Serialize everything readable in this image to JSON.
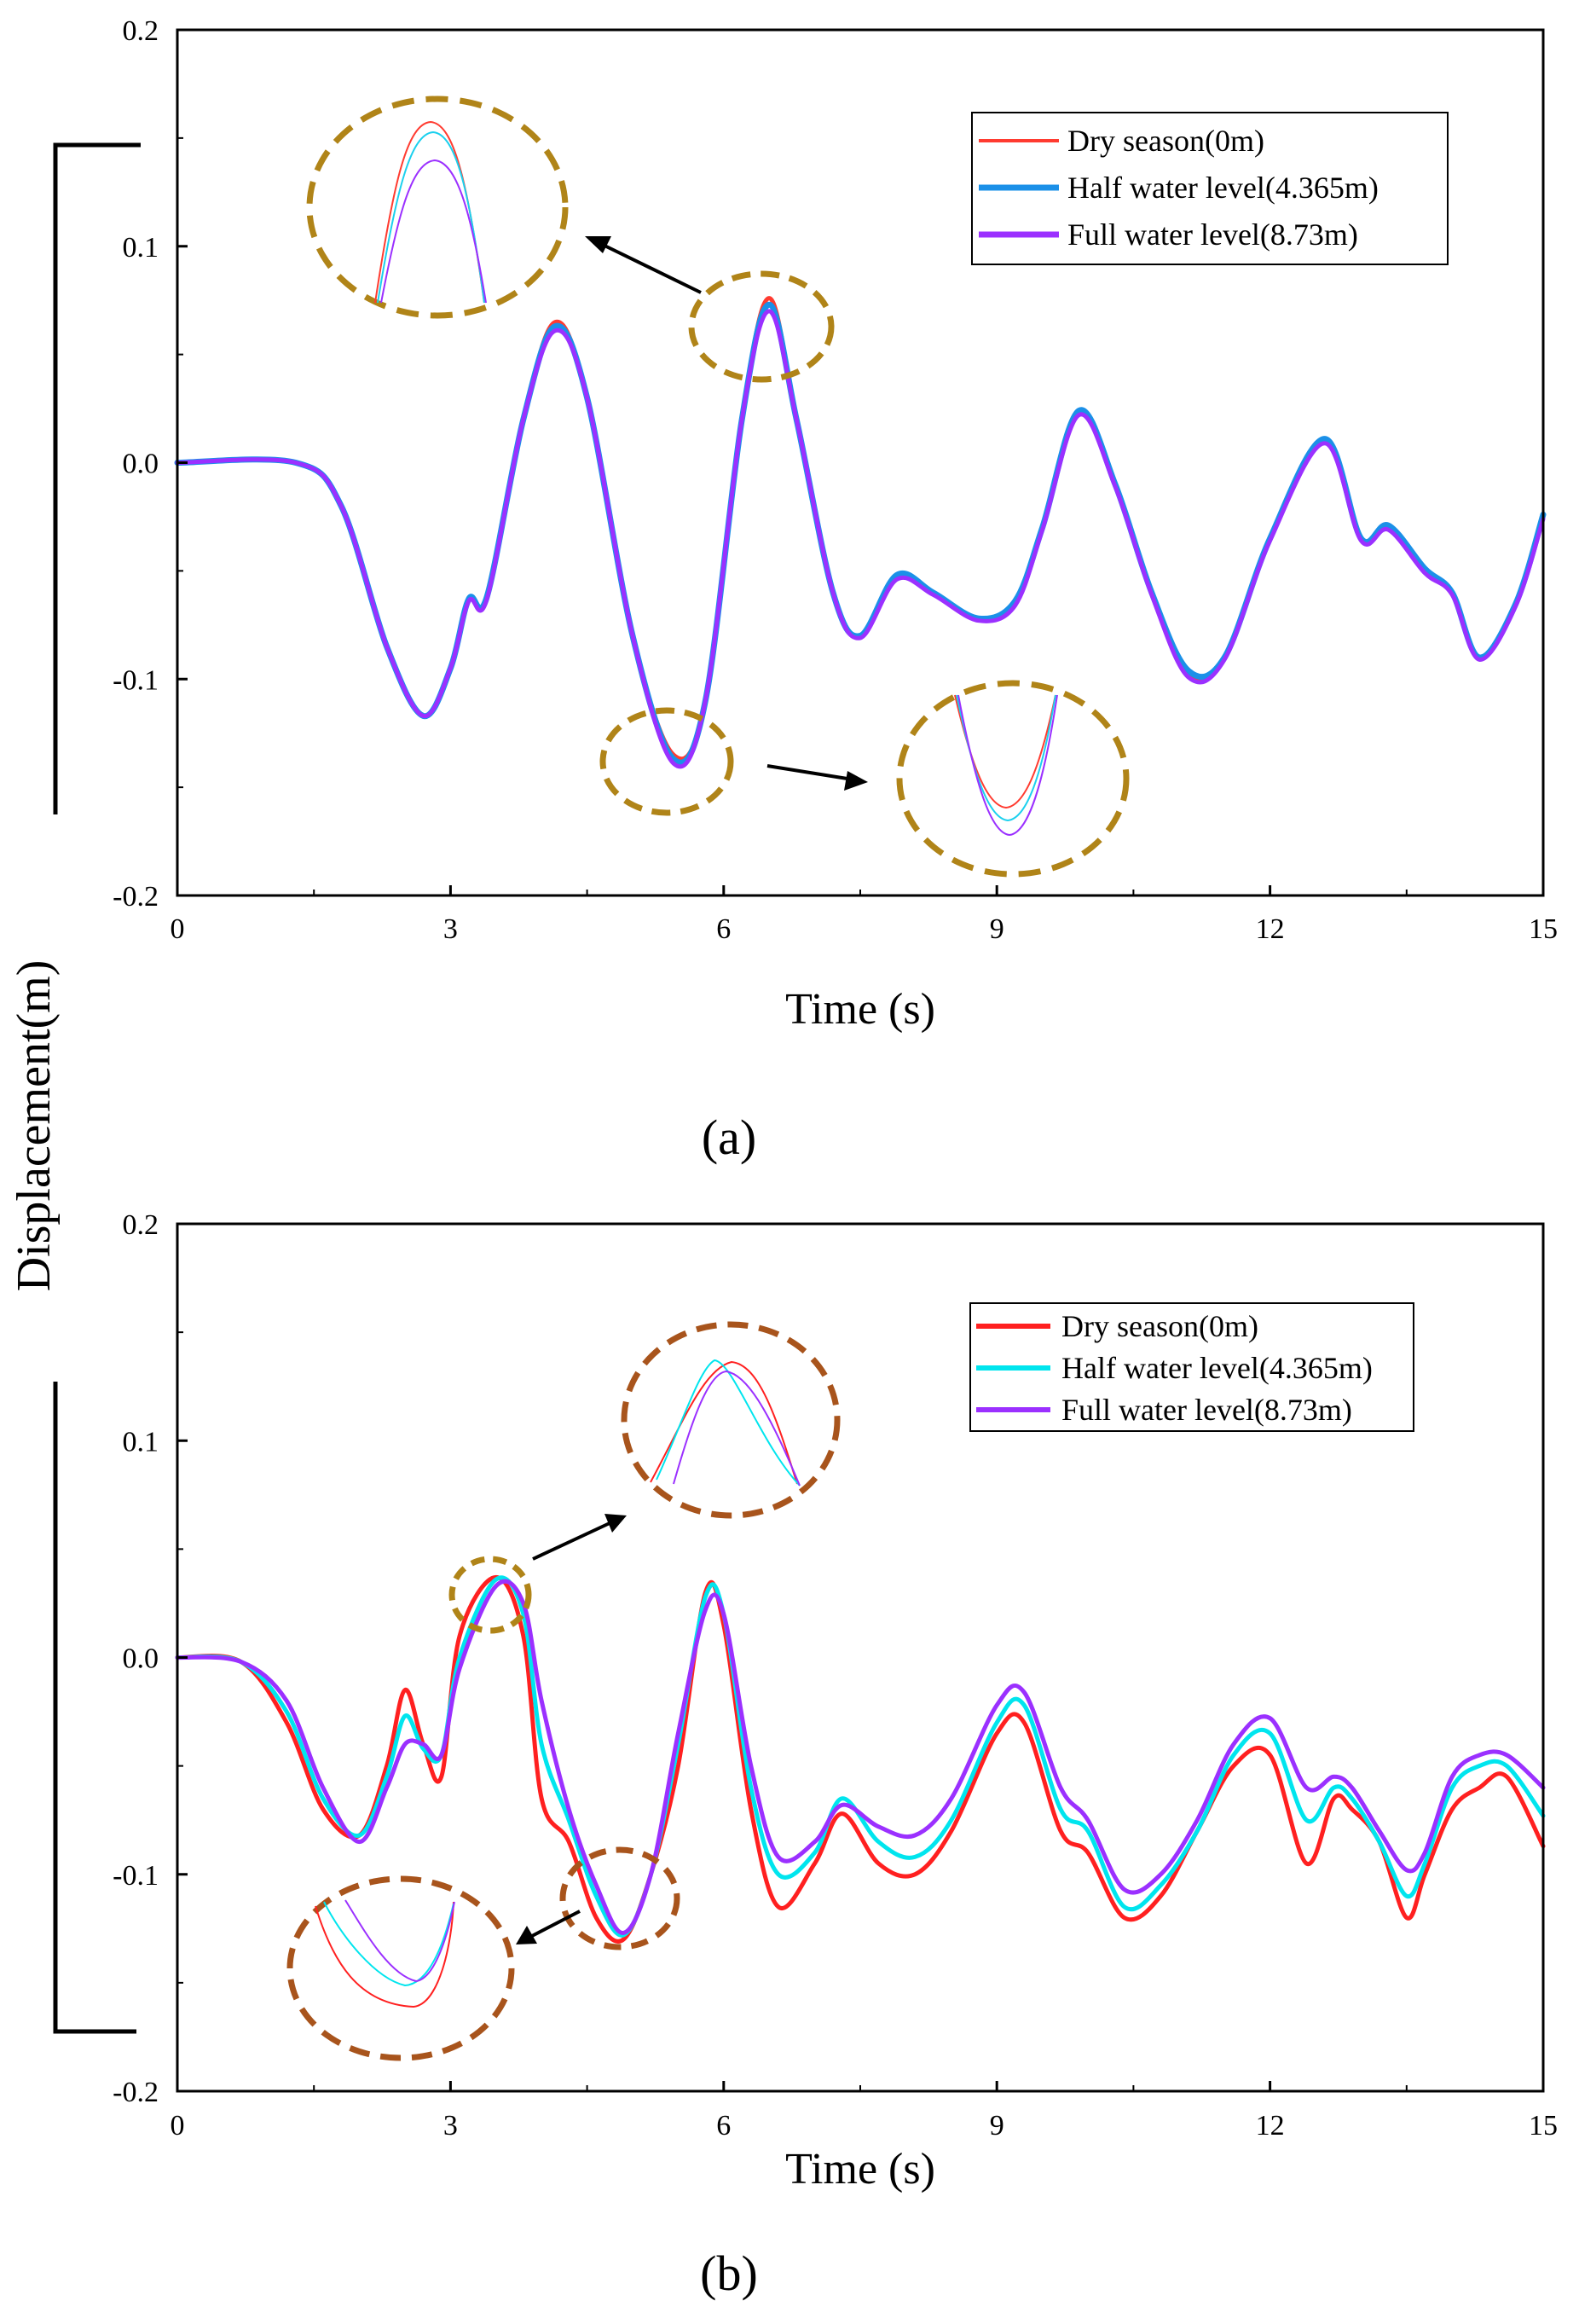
{
  "figure": {
    "ylabel": "Displacement(m)"
  },
  "colors": {
    "a": {
      "dry": "#ff3b30",
      "half": "#1b90e8",
      "full": "#9b30ff"
    },
    "b": {
      "dry": "#ff2020",
      "half": "#00e5ee",
      "full": "#9b30ff"
    },
    "zoom_a": "#b08418",
    "zoom_b": "#a8541c"
  },
  "chart_data": [
    {
      "panel": "(a)",
      "type": "line",
      "xlabel": "Time (s)",
      "ylabel": "Displacement(m)",
      "xlim": [
        0,
        15
      ],
      "ylim": [
        -0.2,
        0.2
      ],
      "xticks": [
        0,
        3,
        6,
        9,
        12,
        15
      ],
      "yticks": [
        -0.2,
        -0.1,
        0.0,
        0.1,
        0.2
      ],
      "ytick_labels": [
        "-0.2",
        "-0.1",
        "0.0",
        "0.1",
        "0.2"
      ],
      "legend_position": "top-right",
      "series": [
        {
          "name": "Dry season(0m)",
          "key": "dry",
          "x": [
            0,
            1.3,
            1.8,
            2.3,
            2.7,
            3.0,
            3.2,
            3.4,
            3.8,
            4.15,
            4.5,
            5.0,
            5.45,
            5.8,
            6.2,
            6.5,
            6.8,
            7.2,
            7.5,
            7.9,
            8.3,
            8.8,
            9.2,
            9.5,
            9.9,
            10.3,
            10.7,
            11.1,
            11.5,
            12.0,
            12.6,
            13.0,
            13.3,
            13.7,
            14.0,
            14.3,
            14.7,
            15.0
          ],
          "y": [
            0,
            0,
            -0.02,
            -0.085,
            -0.117,
            -0.095,
            -0.063,
            -0.062,
            0.02,
            0.065,
            0.03,
            -0.08,
            -0.135,
            -0.11,
            0.02,
            0.076,
            0.02,
            -0.06,
            -0.08,
            -0.053,
            -0.06,
            -0.072,
            -0.065,
            -0.03,
            0.023,
            -0.01,
            -0.06,
            -0.097,
            -0.09,
            -0.035,
            0.01,
            -0.035,
            -0.03,
            -0.05,
            -0.06,
            -0.09,
            -0.065,
            -0.025
          ]
        },
        {
          "name": "Half water level(4.365m)",
          "key": "half",
          "x": [
            0,
            1.3,
            1.8,
            2.3,
            2.7,
            3.0,
            3.2,
            3.4,
            3.8,
            4.15,
            4.5,
            5.0,
            5.45,
            5.8,
            6.2,
            6.5,
            6.8,
            7.2,
            7.5,
            7.9,
            8.3,
            8.8,
            9.2,
            9.5,
            9.9,
            10.3,
            10.7,
            11.1,
            11.5,
            12.0,
            12.6,
            13.0,
            13.3,
            13.7,
            14.0,
            14.3,
            14.7,
            15.0
          ],
          "y": [
            0,
            0,
            -0.02,
            -0.085,
            -0.117,
            -0.095,
            -0.063,
            -0.062,
            0.02,
            0.063,
            0.03,
            -0.08,
            -0.137,
            -0.11,
            0.02,
            0.073,
            0.02,
            -0.06,
            -0.08,
            -0.052,
            -0.06,
            -0.072,
            -0.064,
            -0.03,
            0.024,
            -0.01,
            -0.06,
            -0.096,
            -0.09,
            -0.035,
            0.011,
            -0.035,
            -0.029,
            -0.049,
            -0.06,
            -0.09,
            -0.065,
            -0.024
          ]
        },
        {
          "name": "Full water level(8.73m)",
          "key": "full",
          "x": [
            0,
            1.3,
            1.8,
            2.3,
            2.7,
            3.0,
            3.2,
            3.4,
            3.8,
            4.15,
            4.5,
            5.0,
            5.45,
            5.8,
            6.2,
            6.5,
            6.8,
            7.2,
            7.5,
            7.9,
            8.3,
            8.8,
            9.2,
            9.5,
            9.9,
            10.3,
            10.7,
            11.1,
            11.5,
            12.0,
            12.6,
            13.0,
            13.3,
            13.7,
            14.0,
            14.3,
            14.7,
            15.0
          ],
          "y": [
            0,
            0,
            -0.02,
            -0.085,
            -0.117,
            -0.095,
            -0.064,
            -0.063,
            0.02,
            0.061,
            0.03,
            -0.08,
            -0.139,
            -0.11,
            0.02,
            0.07,
            0.02,
            -0.06,
            -0.081,
            -0.054,
            -0.061,
            -0.073,
            -0.066,
            -0.031,
            0.022,
            -0.011,
            -0.061,
            -0.099,
            -0.091,
            -0.036,
            0.009,
            -0.036,
            -0.031,
            -0.051,
            -0.061,
            -0.091,
            -0.066,
            -0.026
          ]
        }
      ]
    },
    {
      "panel": "(b)",
      "type": "line",
      "xlabel": "Time (s)",
      "ylabel": "Displacement(m)",
      "xlim": [
        0,
        15
      ],
      "ylim": [
        -0.2,
        0.2
      ],
      "xticks": [
        0,
        3,
        6,
        9,
        12,
        15
      ],
      "yticks": [
        -0.2,
        -0.1,
        0.0,
        0.1,
        0.2
      ],
      "ytick_labels": [
        "-0.2",
        "-0.1",
        "0.0",
        "0.1",
        "0.2"
      ],
      "legend_position": "top-right",
      "series": [
        {
          "name": "Dry season(0m)",
          "key": "dry",
          "x": [
            0,
            0.7,
            1.2,
            1.6,
            2.0,
            2.3,
            2.5,
            2.7,
            2.9,
            3.1,
            3.5,
            3.8,
            4.0,
            4.3,
            4.6,
            4.9,
            5.2,
            5.5,
            5.8,
            6.0,
            6.3,
            6.6,
            7.0,
            7.3,
            7.7,
            8.1,
            8.5,
            9.0,
            9.3,
            9.7,
            10.0,
            10.4,
            10.8,
            11.2,
            11.6,
            12.0,
            12.4,
            12.7,
            12.9,
            13.2,
            13.5,
            13.7,
            14.0,
            14.3,
            14.6,
            15.0
          ],
          "y": [
            0,
            -0.002,
            -0.03,
            -0.07,
            -0.082,
            -0.05,
            -0.015,
            -0.04,
            -0.055,
            0.01,
            0.037,
            0.01,
            -0.065,
            -0.085,
            -0.12,
            -0.13,
            -0.1,
            -0.05,
            0.03,
            0.015,
            -0.07,
            -0.115,
            -0.095,
            -0.072,
            -0.095,
            -0.1,
            -0.08,
            -0.035,
            -0.03,
            -0.08,
            -0.09,
            -0.12,
            -0.11,
            -0.08,
            -0.05,
            -0.045,
            -0.095,
            -0.065,
            -0.07,
            -0.085,
            -0.12,
            -0.1,
            -0.07,
            -0.06,
            -0.055,
            -0.087
          ]
        },
        {
          "name": "Half water level(4.365m)",
          "key": "half",
          "x": [
            0,
            0.7,
            1.2,
            1.6,
            2.0,
            2.3,
            2.5,
            2.7,
            2.9,
            3.1,
            3.5,
            3.8,
            4.0,
            4.3,
            4.6,
            4.9,
            5.2,
            5.5,
            5.8,
            6.0,
            6.3,
            6.6,
            7.0,
            7.3,
            7.7,
            8.1,
            8.5,
            9.0,
            9.3,
            9.7,
            10.0,
            10.4,
            10.8,
            11.2,
            11.6,
            12.0,
            12.4,
            12.7,
            12.9,
            13.2,
            13.5,
            13.7,
            14.0,
            14.3,
            14.6,
            15.0
          ],
          "y": [
            0,
            -0.002,
            -0.025,
            -0.065,
            -0.082,
            -0.055,
            -0.027,
            -0.042,
            -0.045,
            0.0,
            0.036,
            0.02,
            -0.04,
            -0.075,
            -0.11,
            -0.128,
            -0.1,
            -0.04,
            0.028,
            0.02,
            -0.06,
            -0.1,
            -0.09,
            -0.065,
            -0.085,
            -0.092,
            -0.075,
            -0.03,
            -0.022,
            -0.07,
            -0.08,
            -0.115,
            -0.105,
            -0.08,
            -0.045,
            -0.035,
            -0.075,
            -0.06,
            -0.065,
            -0.085,
            -0.11,
            -0.095,
            -0.06,
            -0.05,
            -0.05,
            -0.073
          ]
        },
        {
          "name": "Full water level(8.73m)",
          "key": "full",
          "x": [
            0,
            0.7,
            1.2,
            1.6,
            2.0,
            2.3,
            2.5,
            2.7,
            2.9,
            3.1,
            3.5,
            3.8,
            4.0,
            4.3,
            4.6,
            4.9,
            5.2,
            5.5,
            5.8,
            6.0,
            6.3,
            6.6,
            7.0,
            7.3,
            7.7,
            8.1,
            8.5,
            9.0,
            9.3,
            9.7,
            10.0,
            10.4,
            10.8,
            11.2,
            11.6,
            12.0,
            12.4,
            12.7,
            12.9,
            13.2,
            13.5,
            13.7,
            14.0,
            14.3,
            14.6,
            15.0
          ],
          "y": [
            0,
            -0.002,
            -0.02,
            -0.06,
            -0.085,
            -0.06,
            -0.04,
            -0.04,
            -0.045,
            -0.005,
            0.033,
            0.025,
            -0.02,
            -0.07,
            -0.105,
            -0.127,
            -0.1,
            -0.035,
            0.022,
            0.02,
            -0.05,
            -0.092,
            -0.085,
            -0.068,
            -0.078,
            -0.082,
            -0.065,
            -0.022,
            -0.016,
            -0.06,
            -0.075,
            -0.107,
            -0.1,
            -0.075,
            -0.04,
            -0.028,
            -0.06,
            -0.055,
            -0.06,
            -0.08,
            -0.098,
            -0.09,
            -0.055,
            -0.045,
            -0.045,
            -0.06
          ]
        }
      ]
    }
  ],
  "captions": {
    "a": "(a)",
    "b": "(b)"
  }
}
